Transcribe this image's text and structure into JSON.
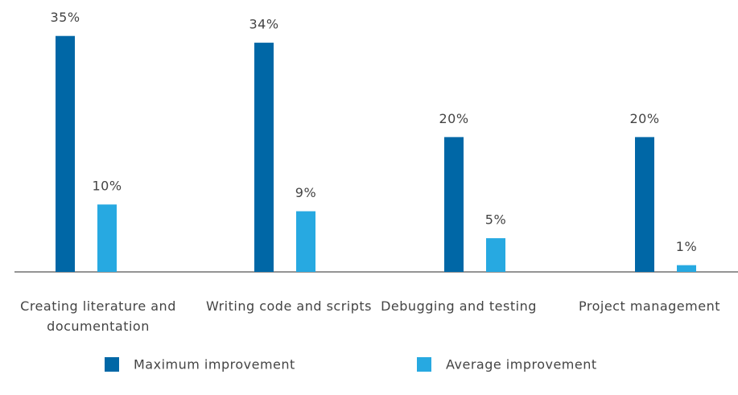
{
  "chart_data": {
    "type": "bar",
    "categories": [
      "Creating literature and documentation",
      "Writing code and scripts",
      "Debugging and testing",
      "Project management"
    ],
    "series": [
      {
        "name": "Maximum improvement",
        "color": "#0067a6",
        "values": [
          35,
          34,
          20,
          20
        ],
        "value_labels": [
          "35%",
          "34%",
          "20%",
          "20%"
        ]
      },
      {
        "name": "Average improvement",
        "color": "#27a9e1",
        "values": [
          10,
          9,
          5,
          1
        ],
        "value_labels": [
          "10%",
          "9%",
          "5%",
          "1%"
        ]
      }
    ]
  }
}
